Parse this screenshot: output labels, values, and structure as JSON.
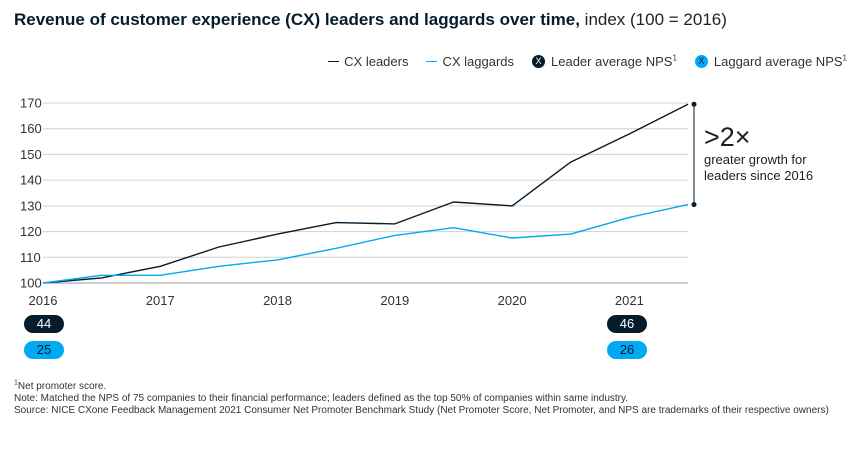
{
  "title": {
    "bold": "Revenue of customer experience (CX) leaders and laggards over time,",
    "normal": " index (100 = 2016)"
  },
  "legend": {
    "leaders": "CX leaders",
    "laggards": "CX laggards",
    "leader_nps": "Leader average NPS",
    "laggard_nps": "Laggard average NPS",
    "footnote_mark": "1",
    "badge_glyph": "X"
  },
  "colors": {
    "leaders": "#051c2c",
    "laggards": "#00a9f4",
    "grid": "#d0d0d0"
  },
  "chart_data": {
    "type": "line",
    "title": "Revenue of customer experience (CX) leaders and laggards over time, index (100 = 2016)",
    "x": [
      2016.0,
      2016.5,
      2017.0,
      2017.5,
      2018.0,
      2018.5,
      2019.0,
      2019.5,
      2020.0,
      2020.5,
      2021.0,
      2021.5
    ],
    "series": [
      {
        "name": "CX leaders",
        "values": [
          100,
          102,
          106.5,
          114,
          119,
          123.5,
          123,
          131.5,
          130,
          147,
          158,
          169.5
        ]
      },
      {
        "name": "CX laggards",
        "values": [
          100,
          103,
          103,
          106.5,
          109,
          113.5,
          118.5,
          121.5,
          117.5,
          119,
          125.5,
          130.5
        ]
      }
    ],
    "x_ticks": [
      "2016",
      "2017",
      "2018",
      "2019",
      "2020",
      "2021"
    ],
    "y_ticks": [
      100,
      110,
      120,
      130,
      140,
      150,
      160,
      170
    ],
    "ylim": [
      100,
      170
    ],
    "xlim": [
      2016,
      2021.5
    ],
    "xlabel": "",
    "ylabel": "",
    "grid": true,
    "annotation": {
      "big": ">2×",
      "text": "greater growth for leaders since 2016",
      "from": 130.5,
      "to": 169.5
    },
    "nps": [
      {
        "year": "2016",
        "leader": "44",
        "laggard": "25"
      },
      {
        "year": "2021",
        "leader": "46",
        "laggard": "26"
      }
    ]
  },
  "footnotes": {
    "mark": "1",
    "line1": "Net promoter score.",
    "line2": "Note: Matched the NPS of 75 companies to their financial performance; leaders defined as the top 50% of companies within same industry.",
    "line3": "Source: NICE CXone Feedback Management 2021 Consumer Net Promoter Benchmark Study (Net Promoter Score, Net Promoter, and NPS are trademarks of their respective owners)"
  }
}
